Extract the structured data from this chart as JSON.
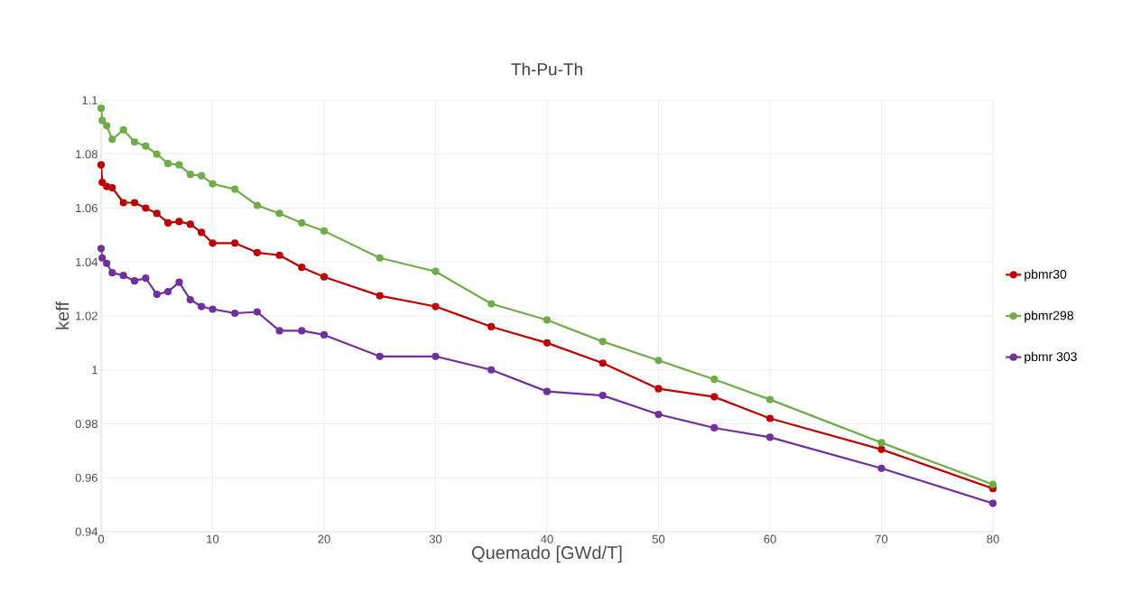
{
  "chart_data": {
    "type": "line",
    "title": "Th-Pu-Th",
    "xlabel": "Quemado [GWd/T]",
    "ylabel": "keff",
    "x": [
      0,
      0.1,
      0.5,
      1,
      2,
      3,
      4,
      5,
      6,
      7,
      8,
      9,
      10,
      12,
      14,
      16,
      18,
      20,
      25,
      30,
      35,
      40,
      45,
      50,
      55,
      60,
      70,
      80
    ],
    "series": [
      {
        "name": "pbmr30",
        "color": "#c00000",
        "values": [
          1.076,
          1.0695,
          1.068,
          1.0675,
          1.062,
          1.062,
          1.06,
          1.058,
          1.0545,
          1.055,
          1.054,
          1.051,
          1.047,
          1.047,
          1.0435,
          1.0425,
          1.038,
          1.0345,
          1.0275,
          1.0235,
          1.016,
          1.01,
          1.0025,
          0.993,
          0.99,
          0.982,
          0.9705,
          0.956
        ]
      },
      {
        "name": "pbmr298",
        "color": "#70ad47",
        "values": [
          1.097,
          1.0925,
          1.0905,
          1.0855,
          1.089,
          1.0845,
          1.083,
          1.08,
          1.0765,
          1.076,
          1.0725,
          1.072,
          1.069,
          1.067,
          1.061,
          1.058,
          1.0545,
          1.0515,
          1.0415,
          1.0365,
          1.0245,
          1.0185,
          1.0105,
          1.0035,
          0.9965,
          0.989,
          0.973,
          0.9575
        ]
      },
      {
        "name": "pbmr 303",
        "color": "#7030a0",
        "values": [
          1.045,
          1.0415,
          1.0395,
          1.036,
          1.035,
          1.033,
          1.034,
          1.028,
          1.029,
          1.0325,
          1.026,
          1.0235,
          1.0225,
          1.021,
          1.0215,
          1.0145,
          1.0145,
          1.013,
          1.005,
          1.005,
          1.0,
          0.992,
          0.9905,
          0.9835,
          0.9785,
          0.975,
          0.9635,
          0.9505
        ]
      }
    ],
    "xlim": [
      0,
      80
    ],
    "xticks": [
      0,
      10,
      20,
      30,
      40,
      50,
      60,
      70,
      80
    ],
    "ylim": [
      0.94,
      1.1
    ],
    "yticks": [
      0.94,
      0.96,
      0.98,
      {
        "value": 1,
        "label": "1"
      },
      1.02,
      1.04,
      1.06,
      1.08,
      1.1
    ],
    "grid": true,
    "legend": "right",
    "marker": "circle",
    "line_style": "solid"
  }
}
